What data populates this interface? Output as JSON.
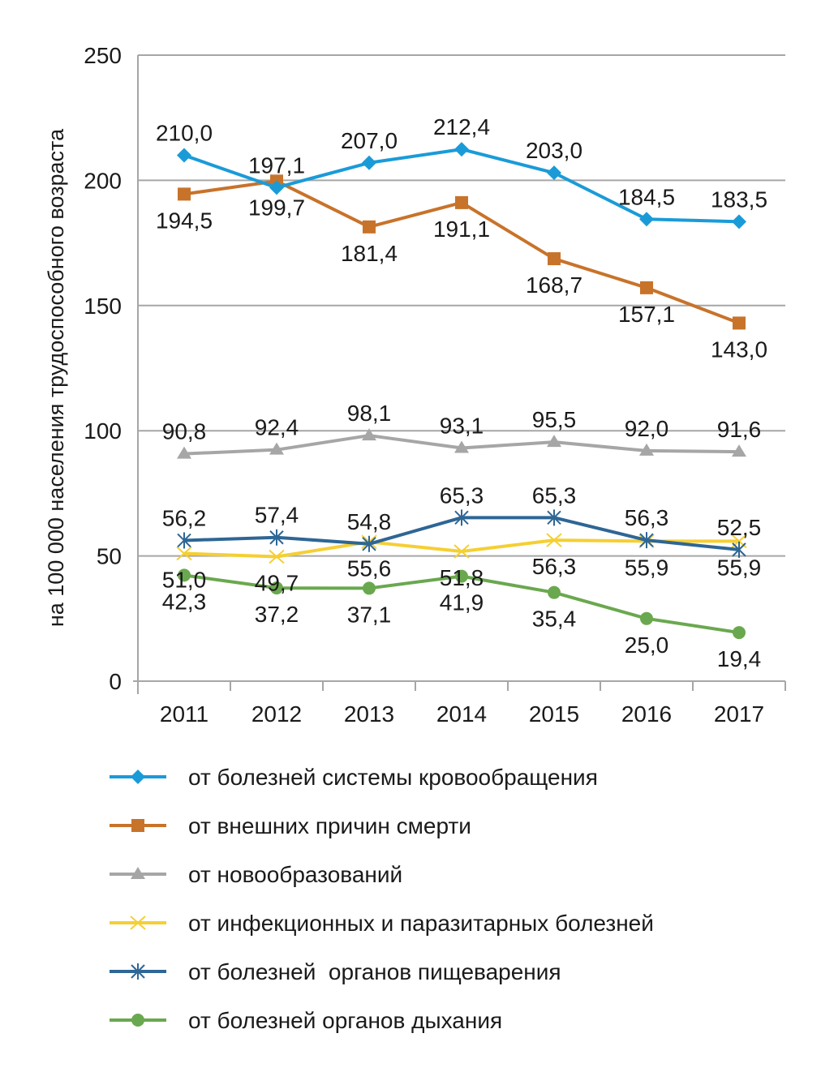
{
  "chart_data": {
    "type": "line",
    "title": "",
    "xlabel": "",
    "ylabel": "на 100 000 населения трудоспособного возраста",
    "ylim": [
      0,
      250
    ],
    "yticks": [
      "0",
      "50",
      "100",
      "150",
      "200",
      "250"
    ],
    "ytick_values": [
      0,
      50,
      100,
      150,
      200,
      250
    ],
    "grid": true,
    "legend_position": "bottom",
    "categories": [
      "2011",
      "2012",
      "2013",
      "2014",
      "2015",
      "2016",
      "2017"
    ],
    "series": [
      {
        "name": "от болезней системы кровообращения",
        "color": "#1a9bd8",
        "marker": "diamond",
        "values": [
          210.0,
          197.1,
          207.0,
          212.4,
          203.0,
          184.5,
          183.5
        ],
        "labels": [
          "210,0",
          "197,1",
          "207,0",
          "212,4",
          "203,0",
          "184,5",
          "183,5"
        ],
        "label_pos": [
          "above",
          "above",
          "above",
          "above",
          "above",
          "above",
          "above"
        ]
      },
      {
        "name": "от внешних причин смерти",
        "color": "#c8732a",
        "marker": "square",
        "values": [
          194.5,
          199.7,
          181.4,
          191.1,
          168.7,
          157.1,
          143.0
        ],
        "labels": [
          "194,5",
          "199,7",
          "181,4",
          "191,1",
          "168,7",
          "157,1",
          "143,0"
        ],
        "label_pos": [
          "below",
          "below",
          "below",
          "below",
          "below",
          "below",
          "below"
        ]
      },
      {
        "name": "от новообразований",
        "color": "#a6a6a6",
        "marker": "triangle",
        "values": [
          90.8,
          92.4,
          98.1,
          93.1,
          95.5,
          92.0,
          91.6
        ],
        "labels": [
          "90,8",
          "92,4",
          "98,1",
          "93,1",
          "95,5",
          "92,0",
          "91,6"
        ],
        "label_pos": [
          "above",
          "above",
          "above",
          "above",
          "above",
          "above",
          "above"
        ]
      },
      {
        "name": "от инфекционных и паразитарных болезней",
        "color": "#f5cf33",
        "marker": "x",
        "values": [
          51.0,
          49.7,
          55.6,
          51.8,
          56.3,
          55.9,
          55.9
        ],
        "labels": [
          "51,0",
          "49,7",
          "55,6",
          "51,8",
          "56,3",
          "55,9",
          "55,9"
        ],
        "label_pos": [
          "below",
          "below",
          "below",
          "below",
          "below",
          "below",
          "below"
        ]
      },
      {
        "name": "от болезней  органов пищеварения",
        "color": "#2e6694",
        "marker": "star",
        "values": [
          56.2,
          57.4,
          54.8,
          65.3,
          65.3,
          56.3,
          52.5
        ],
        "labels": [
          "56,2",
          "57,4",
          "54,8",
          "65,3",
          "65,3",
          "56,3",
          "52,5"
        ],
        "label_pos": [
          "above",
          "above",
          "above",
          "above",
          "above",
          "above",
          "above"
        ]
      },
      {
        "name": "от болезней органов дыхания",
        "color": "#6aa84f",
        "marker": "circle",
        "values": [
          42.3,
          37.2,
          37.1,
          41.9,
          35.4,
          25.0,
          19.4
        ],
        "labels": [
          "42,3",
          "37,2",
          "37,1",
          "41,9",
          "35,4",
          "25,0",
          "19,4"
        ],
        "label_pos": [
          "below",
          "below",
          "below",
          "below",
          "below",
          "below",
          "below"
        ]
      }
    ]
  }
}
